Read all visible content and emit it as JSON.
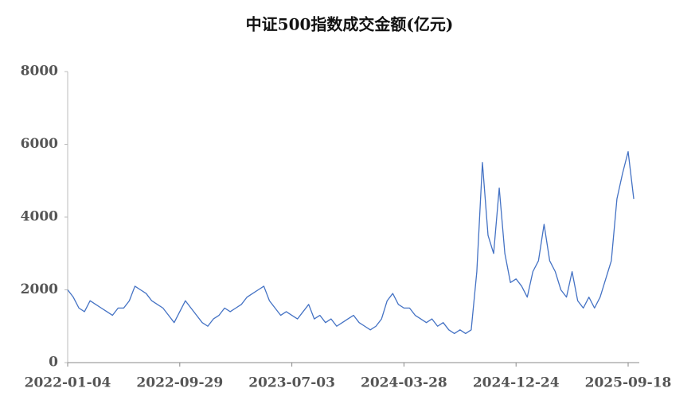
{
  "chart_data": {
    "type": "line",
    "title": "中证500指数成交金额(亿元)",
    "categories": [
      "2022-01-04",
      null,
      null,
      null,
      null,
      null,
      null,
      null,
      null,
      null,
      null,
      null,
      null,
      null,
      null,
      null,
      null,
      null,
      null,
      null,
      "2022-09-29",
      null,
      null,
      null,
      null,
      null,
      null,
      null,
      null,
      null,
      null,
      null,
      null,
      null,
      null,
      null,
      null,
      null,
      null,
      null,
      "2023-07-03",
      null,
      null,
      null,
      null,
      null,
      null,
      null,
      null,
      null,
      null,
      null,
      null,
      null,
      null,
      null,
      null,
      null,
      null,
      null,
      "2024-03-28",
      null,
      null,
      null,
      null,
      null,
      null,
      null,
      null,
      null,
      null,
      null,
      null,
      null,
      null,
      null,
      null,
      null,
      null,
      null,
      "2024-12-24",
      null,
      null,
      null,
      null,
      null,
      null,
      null,
      null,
      null,
      null,
      null,
      null,
      null,
      null,
      null,
      null,
      null,
      null,
      null,
      "2025-09-18",
      null
    ],
    "values": [
      2000,
      1800,
      1500,
      1400,
      1700,
      1600,
      1500,
      1400,
      1300,
      1500,
      1500,
      1700,
      2100,
      2000,
      1900,
      1700,
      1600,
      1500,
      1300,
      1100,
      1400,
      1700,
      1500,
      1300,
      1100,
      1000,
      1200,
      1300,
      1500,
      1400,
      1500,
      1600,
      1800,
      1900,
      2000,
      2100,
      1700,
      1500,
      1300,
      1400,
      1300,
      1200,
      1400,
      1600,
      1200,
      1300,
      1100,
      1200,
      1000,
      1100,
      1200,
      1300,
      1100,
      1000,
      900,
      1000,
      1200,
      1700,
      1900,
      1600,
      1500,
      1500,
      1300,
      1200,
      1100,
      1200,
      1000,
      1100,
      900,
      800,
      900,
      800,
      900,
      2500,
      5500,
      3500,
      3000,
      4800,
      3000,
      2200,
      2300,
      2100,
      1800,
      2500,
      2800,
      3800,
      2800,
      2500,
      2000,
      1800,
      2500,
      1700,
      1500,
      1800,
      1500,
      1800,
      2300,
      2800,
      4500,
      5200,
      5800,
      4500
    ],
    "color": "#4472c4",
    "ylim": [
      0,
      8000
    ],
    "yticks": [
      0,
      2000,
      4000,
      6000,
      8000
    ]
  }
}
